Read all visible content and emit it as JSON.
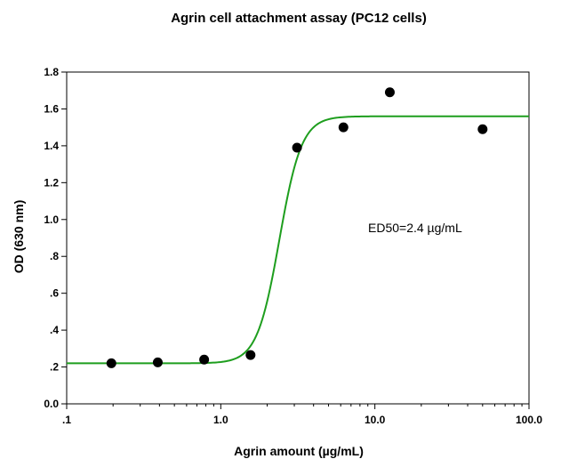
{
  "chart_data": {
    "type": "scatter",
    "title": "Agrin cell attachment assay (PC12 cells)",
    "xlabel": "Agrin amount (µg/mL)",
    "ylabel": "OD (630 nm)",
    "xscale": "log",
    "xlim": [
      0.1,
      100
    ],
    "ylim": [
      0,
      1.8
    ],
    "x_ticks": [
      {
        "value": 0.1,
        "label": ".1"
      },
      {
        "value": 1,
        "label": "1.0"
      },
      {
        "value": 10,
        "label": "10.0"
      },
      {
        "value": 100,
        "label": "100.0"
      }
    ],
    "y_ticks": [
      {
        "value": 0,
        "label": "0.0"
      },
      {
        "value": 0.2,
        "label": ".2"
      },
      {
        "value": 0.4,
        "label": ".4"
      },
      {
        "value": 0.6,
        "label": ".6"
      },
      {
        "value": 0.8,
        "label": ".8"
      },
      {
        "value": 1.0,
        "label": "1.0"
      },
      {
        "value": 1.2,
        "label": "1.2"
      },
      {
        "value": 1.4,
        "label": "1.4"
      },
      {
        "value": 1.6,
        "label": "1.6"
      },
      {
        "value": 1.8,
        "label": "1.8"
      }
    ],
    "points": [
      {
        "x": 0.195,
        "y": 0.22
      },
      {
        "x": 0.39,
        "y": 0.225
      },
      {
        "x": 0.78,
        "y": 0.24
      },
      {
        "x": 1.56,
        "y": 0.265
      },
      {
        "x": 3.125,
        "y": 1.39
      },
      {
        "x": 6.25,
        "y": 1.5
      },
      {
        "x": 12.5,
        "y": 1.69
      },
      {
        "x": 50,
        "y": 1.49
      }
    ],
    "fit": {
      "bottom": 0.22,
      "top": 1.56,
      "ec50": 2.4,
      "hill": 6
    },
    "fit_color": "#1e9e1e",
    "marker_color": "#000000",
    "grid": false,
    "annotation": "ED50=2.4 µg/mL"
  }
}
